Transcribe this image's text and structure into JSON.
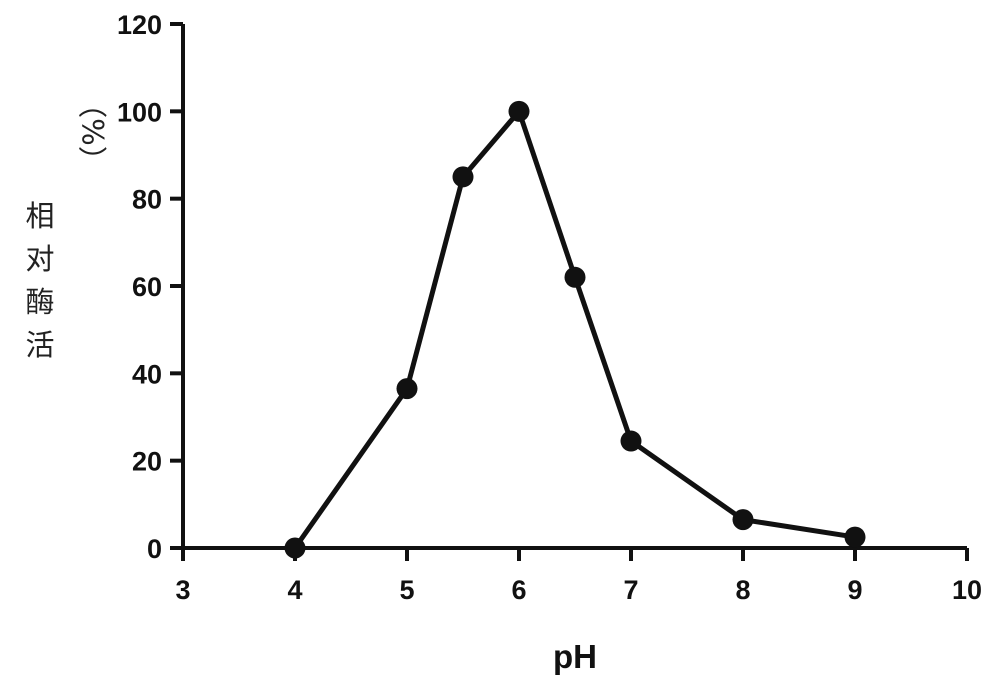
{
  "chart_data": {
    "type": "line",
    "title": "",
    "xlabel": "pH",
    "ylabel_chars": [
      "相",
      "对",
      "酶",
      "活"
    ],
    "ylabel_unit": "（%）",
    "xlim": [
      3,
      10
    ],
    "ylim": [
      0,
      120
    ],
    "xticks": [
      3,
      4,
      5,
      6,
      7,
      8,
      9,
      10
    ],
    "yticks": [
      0,
      20,
      40,
      60,
      80,
      100,
      120
    ],
    "grid": false,
    "legend": "none",
    "line_color": "#111111",
    "series": [
      {
        "x": [
          4,
          5,
          5.5,
          6,
          6.5,
          7,
          8,
          9
        ],
        "values": [
          0,
          36.5,
          85,
          100,
          62,
          24.5,
          6.5,
          2.5
        ]
      }
    ]
  }
}
